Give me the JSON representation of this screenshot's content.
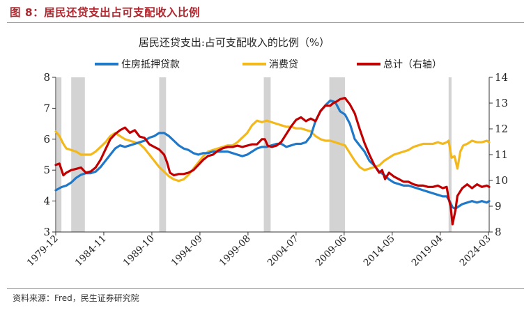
{
  "figure_title": "图 8：居民还贷支出占可支配收入比例",
  "source": "资料来源：Fred，民生证券研究院",
  "chart_data": {
    "type": "line",
    "title": "居民还贷支出:占可支配收入的比例（%）",
    "legend": [
      {
        "name": "住房抵押贷款",
        "color": "#1f78c8"
      },
      {
        "name": "消费贷",
        "color": "#f2b81c"
      },
      {
        "name": "总计（右轴）",
        "color": "#c00000"
      }
    ],
    "legend_position": "top",
    "x_range": [
      1979.92,
      2024.25
    ],
    "x_ticks": [
      "1979-12",
      "1984-11",
      "1989-10",
      "1994-09",
      "1999-08",
      "2004-07",
      "2009-06",
      "2014-05",
      "2019-04",
      "2024-03"
    ],
    "y_left": {
      "min": 3,
      "max": 8,
      "ticks": [
        "3",
        "4",
        "5",
        "6",
        "7",
        "8"
      ]
    },
    "y_right": {
      "min": 8,
      "max": 14,
      "ticks": [
        "8",
        "9",
        "10",
        "11",
        "12",
        "13",
        "14"
      ]
    },
    "grid": false,
    "recessions": [
      [
        1980.0,
        1980.5
      ],
      [
        1981.5,
        1982.9
      ],
      [
        1990.5,
        1991.2
      ],
      [
        2001.2,
        2001.9
      ],
      [
        2007.9,
        2009.5
      ],
      [
        2020.1,
        2020.4
      ]
    ],
    "series": [
      {
        "name": "住房抵押贷款",
        "axis": "left",
        "x": [
          1979.92,
          1980.5,
          1981,
          1981.5,
          1982,
          1982.5,
          1983,
          1983.5,
          1984,
          1984.5,
          1985,
          1985.5,
          1986,
          1986.5,
          1987,
          1987.5,
          1988,
          1988.5,
          1989,
          1989.5,
          1990,
          1990.5,
          1991,
          1991.5,
          1992,
          1992.5,
          1993,
          1993.5,
          1994,
          1994.5,
          1995,
          1995.5,
          1996,
          1996.5,
          1997,
          1997.5,
          1998,
          1998.5,
          1999,
          1999.5,
          2000,
          2000.5,
          2001,
          2001.5,
          2002,
          2002.5,
          2003,
          2003.5,
          2004,
          2004.5,
          2005,
          2005.5,
          2006,
          2006.5,
          2007,
          2007.5,
          2008,
          2008.5,
          2009,
          2009.5,
          2010,
          2010.5,
          2011,
          2011.5,
          2012,
          2012.5,
          2013,
          2013.5,
          2014,
          2014.5,
          2015,
          2015.5,
          2016,
          2016.5,
          2017,
          2017.5,
          2018,
          2018.5,
          2019,
          2019.5,
          2019.9,
          2020.2,
          2020.5,
          2020.8,
          2021,
          2021.5,
          2022,
          2022.5,
          2023,
          2023.5,
          2024,
          2024.25
        ],
        "values": [
          4.35,
          4.45,
          4.5,
          4.6,
          4.75,
          4.85,
          4.9,
          4.9,
          4.95,
          5.1,
          5.3,
          5.5,
          5.7,
          5.8,
          5.75,
          5.8,
          5.85,
          5.9,
          5.95,
          6.05,
          6.1,
          6.2,
          6.2,
          6.1,
          5.95,
          5.8,
          5.7,
          5.65,
          5.55,
          5.5,
          5.55,
          5.55,
          5.6,
          5.6,
          5.6,
          5.6,
          5.55,
          5.5,
          5.45,
          5.5,
          5.6,
          5.7,
          5.75,
          5.75,
          5.8,
          5.85,
          5.85,
          5.75,
          5.8,
          5.85,
          5.85,
          5.9,
          6.1,
          6.6,
          6.9,
          7.1,
          7.25,
          7.2,
          6.9,
          6.8,
          6.5,
          6.0,
          5.8,
          5.6,
          5.3,
          5.15,
          4.95,
          4.85,
          4.7,
          4.6,
          4.55,
          4.5,
          4.5,
          4.45,
          4.4,
          4.35,
          4.3,
          4.25,
          4.2,
          4.15,
          4.15,
          4.0,
          3.8,
          3.75,
          3.8,
          3.9,
          3.95,
          4.0,
          3.95,
          4.0,
          3.95,
          4.0
        ]
      },
      {
        "name": "消费贷",
        "axis": "left",
        "x": [
          1979.92,
          1980.3,
          1980.7,
          1981,
          1981.5,
          1982,
          1982.5,
          1983,
          1983.5,
          1984,
          1984.5,
          1985,
          1985.5,
          1986,
          1986.5,
          1987,
          1987.5,
          1988,
          1988.5,
          1989,
          1989.5,
          1990,
          1990.5,
          1991,
          1991.5,
          1992,
          1992.5,
          1993,
          1993.5,
          1994,
          1994.5,
          1995,
          1995.5,
          1996,
          1996.5,
          1997,
          1997.5,
          1998,
          1998.5,
          1999,
          1999.5,
          2000,
          2000.5,
          2001,
          2001.5,
          2002,
          2002.5,
          2003,
          2003.5,
          2004,
          2004.5,
          2005,
          2005.5,
          2006,
          2006.5,
          2007,
          2007.5,
          2008,
          2008.5,
          2009,
          2009.5,
          2010,
          2010.5,
          2011,
          2011.5,
          2012,
          2012.5,
          2013,
          2013.5,
          2014,
          2014.5,
          2015,
          2015.5,
          2016,
          2016.5,
          2017,
          2017.5,
          2018,
          2018.5,
          2019,
          2019.5,
          2019.9,
          2020.1,
          2020.4,
          2020.7,
          2021,
          2021.3,
          2021.6,
          2022,
          2022.5,
          2023,
          2023.5,
          2024,
          2024.25
        ],
        "values": [
          6.25,
          6.1,
          5.85,
          5.7,
          5.65,
          5.6,
          5.5,
          5.5,
          5.5,
          5.6,
          5.75,
          5.9,
          6.1,
          6.2,
          6.1,
          6.0,
          5.95,
          5.9,
          5.85,
          5.7,
          5.5,
          5.3,
          5.1,
          4.95,
          4.8,
          4.7,
          4.65,
          4.7,
          4.85,
          5.05,
          5.25,
          5.45,
          5.6,
          5.65,
          5.7,
          5.75,
          5.8,
          5.8,
          5.9,
          6.05,
          6.2,
          6.45,
          6.6,
          6.55,
          6.6,
          6.55,
          6.5,
          6.45,
          6.4,
          6.4,
          6.35,
          6.35,
          6.3,
          6.25,
          6.1,
          6.0,
          5.95,
          5.95,
          5.9,
          5.85,
          5.8,
          5.55,
          5.3,
          5.1,
          5.0,
          5.05,
          5.1,
          5.15,
          5.3,
          5.4,
          5.5,
          5.55,
          5.6,
          5.65,
          5.75,
          5.8,
          5.85,
          5.85,
          5.85,
          5.9,
          5.85,
          5.9,
          5.95,
          5.4,
          5.45,
          5.05,
          5.6,
          5.8,
          5.85,
          5.95,
          5.9,
          5.9,
          5.95,
          5.9
        ]
      },
      {
        "name": "总计（右轴）",
        "axis": "right",
        "x": [
          1979.92,
          1980.3,
          1980.7,
          1981,
          1981.5,
          1982,
          1982.5,
          1983,
          1983.5,
          1984,
          1984.5,
          1985,
          1985.5,
          1986,
          1986.5,
          1987,
          1987.5,
          1988,
          1988.5,
          1989,
          1989.5,
          1990,
          1990.5,
          1991,
          1991.3,
          1991.6,
          1992,
          1992.5,
          1993,
          1993.5,
          1994,
          1994.5,
          1995,
          1995.5,
          1996,
          1996.5,
          1997,
          1997.5,
          1998,
          1998.5,
          1999,
          1999.5,
          2000,
          2000.5,
          2001,
          2001.3,
          2001.6,
          2002,
          2002.5,
          2003,
          2003.5,
          2004,
          2004.5,
          2005,
          2005.5,
          2006,
          2006.5,
          2007,
          2007.5,
          2008,
          2008.3,
          2008.6,
          2009,
          2009.5,
          2010,
          2010.5,
          2011,
          2011.5,
          2012,
          2012.5,
          2013,
          2013.3,
          2013.6,
          2014,
          2014.5,
          2015,
          2015.5,
          2016,
          2016.5,
          2017,
          2017.5,
          2018,
          2018.5,
          2019,
          2019.5,
          2019.9,
          2020.1,
          2020.3,
          2020.5,
          2020.8,
          2021,
          2021.5,
          2022,
          2022.5,
          2023,
          2023.5,
          2024,
          2024.25
        ],
        "values": [
          10.6,
          10.65,
          10.2,
          10.3,
          10.4,
          10.45,
          10.5,
          10.3,
          10.35,
          10.5,
          10.8,
          11.2,
          11.6,
          11.8,
          11.95,
          12.05,
          11.85,
          11.95,
          11.7,
          11.65,
          11.4,
          11.3,
          11.2,
          11.0,
          10.7,
          10.3,
          10.2,
          10.25,
          10.25,
          10.3,
          10.4,
          10.6,
          10.8,
          10.95,
          11.0,
          11.15,
          11.25,
          11.3,
          11.3,
          11.35,
          11.3,
          11.35,
          11.4,
          11.4,
          11.6,
          11.6,
          11.35,
          11.3,
          11.35,
          11.5,
          11.8,
          12.1,
          12.35,
          12.45,
          12.3,
          12.4,
          12.3,
          12.7,
          12.9,
          12.9,
          13.0,
          13.05,
          13.15,
          13.2,
          12.95,
          12.6,
          12.0,
          11.45,
          11.0,
          10.6,
          10.3,
          10.4,
          10.05,
          10.3,
          10.15,
          10.05,
          9.95,
          9.95,
          9.85,
          9.8,
          9.8,
          9.75,
          9.75,
          9.8,
          9.7,
          9.75,
          9.3,
          9.0,
          8.3,
          8.85,
          9.4,
          9.7,
          9.85,
          9.7,
          9.85,
          9.75,
          9.8,
          9.75
        ]
      }
    ]
  }
}
